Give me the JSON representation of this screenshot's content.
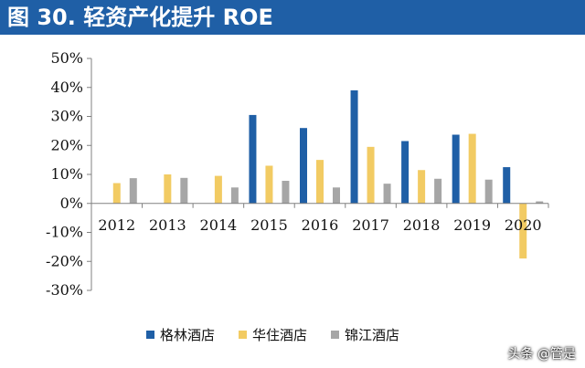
{
  "header": {
    "title": "图 30. 轻资产化提升 ROE"
  },
  "watermark": "头条 @管是",
  "colors": {
    "title_bg": "#1f5fa6"
  },
  "chart_data": {
    "type": "bar",
    "categories": [
      "2012",
      "2013",
      "2014",
      "2015",
      "2016",
      "2017",
      "2018",
      "2019",
      "2020"
    ],
    "series": [
      {
        "name": "格林酒店",
        "color": "#1f5fa6",
        "values": [
          null,
          null,
          null,
          30.5,
          26,
          39,
          21.5,
          23.7,
          12.5
        ]
      },
      {
        "name": "华住酒店",
        "color": "#f2cb63",
        "values": [
          7,
          10,
          9.5,
          13,
          15,
          19.5,
          11.5,
          24,
          -19
        ]
      },
      {
        "name": "锦江酒店",
        "color": "#a6a6a6",
        "values": [
          8.7,
          8.8,
          5.5,
          7.8,
          5.5,
          6.8,
          8.5,
          8.2,
          0.7
        ]
      }
    ],
    "yticks": [
      "50%",
      "40%",
      "30%",
      "20%",
      "10%",
      "0%",
      "-10%",
      "-20%",
      "-30%"
    ],
    "ylim": [
      -30,
      50
    ],
    "grid": false,
    "legend_position": "bottom"
  }
}
